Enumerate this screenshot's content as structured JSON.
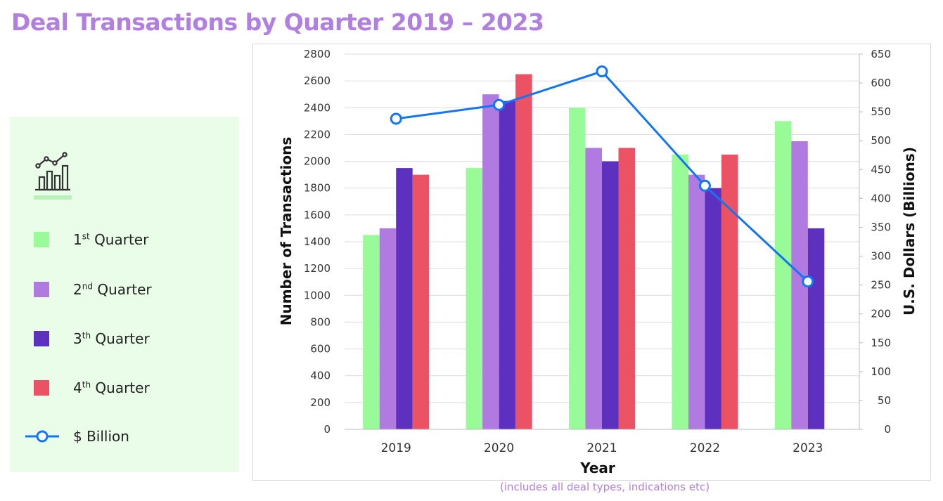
{
  "title": "Deal Transactions by Quarter 2019 – 2023",
  "note": "(includes all deal types, indications etc)",
  "legend": {
    "icon": "growth-chart-icon",
    "items": [
      {
        "key": "q1",
        "ordinal": "1",
        "suffix": "st",
        "word": "Quarter",
        "color": "#98fb98"
      },
      {
        "key": "q2",
        "ordinal": "2",
        "suffix": "nd",
        "word": "Quarter",
        "color": "#b07ae0"
      },
      {
        "key": "q3",
        "ordinal": "3",
        "suffix": "th",
        "word": "Quarter",
        "color": "#5e30c0"
      },
      {
        "key": "q4",
        "ordinal": "4",
        "suffix": "th",
        "word": "Quarter",
        "color": "#eb5364"
      }
    ],
    "line_item": {
      "label": "$ Billion",
      "color": "#1175f5"
    }
  },
  "chart_data": {
    "type": "bar",
    "categories": [
      "2019",
      "2020",
      "2021",
      "2022",
      "2023"
    ],
    "series": [
      {
        "key": "q1",
        "values": [
          1450,
          1950,
          2400,
          2050,
          2300
        ],
        "color": "#98fb98"
      },
      {
        "key": "q2",
        "values": [
          1500,
          2500,
          2100,
          1900,
          2150
        ],
        "color": "#b07ae0"
      },
      {
        "key": "q3",
        "values": [
          1950,
          2450,
          2000,
          1800,
          1500
        ],
        "color": "#5e30c0"
      },
      {
        "key": "q4",
        "values": [
          1900,
          2650,
          2100,
          2050,
          null
        ],
        "color": "#eb5364"
      }
    ],
    "line_series": {
      "name": "$ Billion",
      "axis": "right",
      "values": [
        538,
        562,
        620,
        422,
        256
      ],
      "color": "#1175f5"
    },
    "xlabel": "Year",
    "ylabel": "Number of Transactions",
    "y2label": "U.S. Dollars (Billions)",
    "ylim": [
      0,
      2800
    ],
    "y_ticks": [
      0,
      200,
      400,
      600,
      800,
      1000,
      1200,
      1400,
      1600,
      1800,
      2000,
      2200,
      2400,
      2600,
      2800
    ],
    "y2lim": [
      0,
      650
    ],
    "y2_ticks": [
      0,
      50,
      100,
      150,
      200,
      250,
      300,
      350,
      400,
      450,
      500,
      550,
      600,
      650
    ],
    "grid": true
  }
}
